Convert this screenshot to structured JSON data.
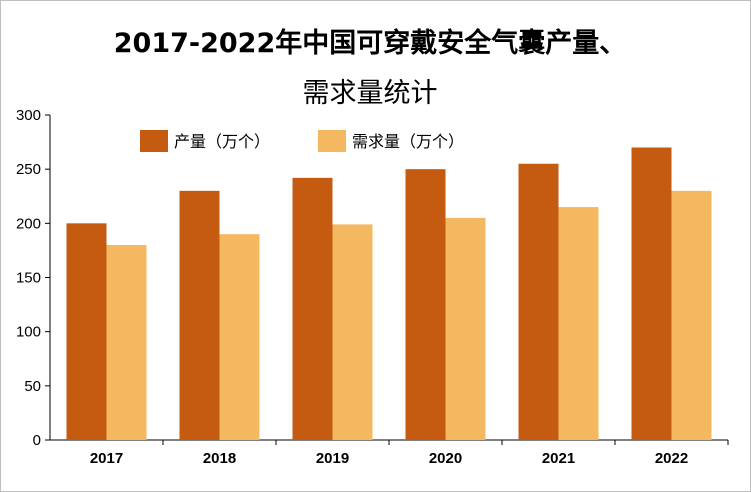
{
  "chart_data": {
    "type": "bar",
    "title_line1": "2017-2022年中国可穿戴安全气囊产量、",
    "title_line2": "需求量统计",
    "categories": [
      "2017",
      "2018",
      "2019",
      "2020",
      "2021",
      "2022"
    ],
    "series": [
      {
        "name": "产量（万个）",
        "values": [
          200,
          230,
          242,
          250,
          255,
          270
        ],
        "color": "#C55A11"
      },
      {
        "name": "需求量（万个）",
        "values": [
          180,
          190,
          199,
          205,
          215,
          230
        ],
        "color": "#F4B860"
      }
    ],
    "yticks": [
      0,
      50,
      100,
      150,
      200,
      250,
      300
    ],
    "ylim": [
      0,
      300
    ],
    "xlabel": "",
    "ylabel": "",
    "legend_position": "top-left",
    "grid": false
  }
}
